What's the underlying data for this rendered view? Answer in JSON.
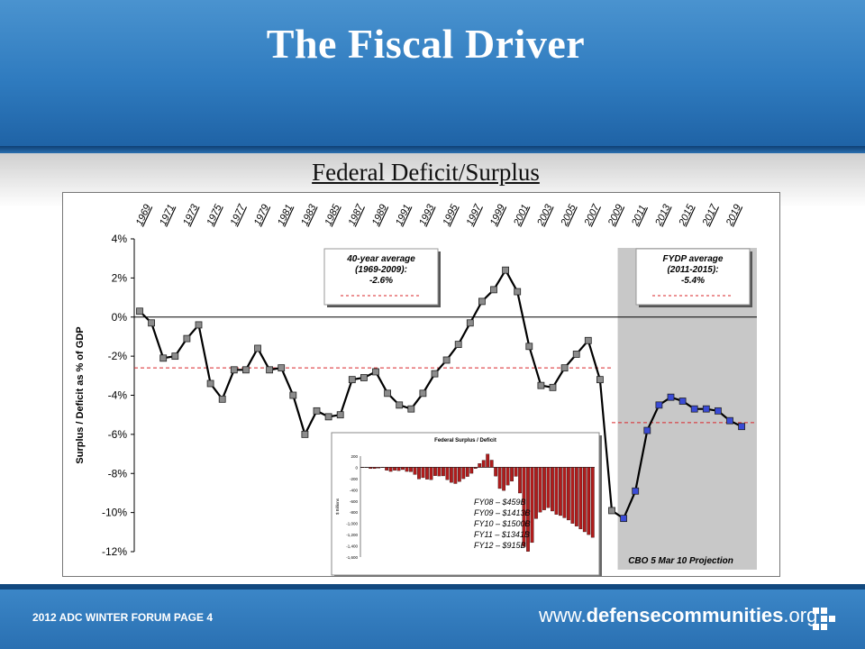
{
  "slide": {
    "title": "The Fiscal Driver",
    "subtitle": "Federal Deficit/Surplus",
    "footer_left": "2012 ADC WINTER FORUM   PAGE 4",
    "footer_right_prefix": "www.",
    "footer_right_bold": "defensecommunities",
    "footer_right_suffix": ".org",
    "band_color": "#2f7bbf"
  },
  "chart_data": [
    {
      "type": "line",
      "ylabel": "Surplus / Deficit as % of GDP",
      "xlabel": "",
      "ylim": [
        -12,
        4
      ],
      "yticks": [
        "4%",
        "2%",
        "0%",
        "-2%",
        "-4%",
        "-6%",
        "-8%",
        "-10%",
        "-12%"
      ],
      "xticks": [
        "1969",
        "1971",
        "1973",
        "1975",
        "1977",
        "1979",
        "1981",
        "1983",
        "1985",
        "1987",
        "1989",
        "1991",
        "1993",
        "1995",
        "1997",
        "1999",
        "2001",
        "2003",
        "2005",
        "2007",
        "2009",
        "2011",
        "2013",
        "2015",
        "2017",
        "2019"
      ],
      "series": [
        {
          "color": "#000000",
          "marker_color": "#8c8c8c",
          "x": [
            1969,
            1970,
            1971,
            1972,
            1973,
            1974,
            1975,
            1976,
            1977,
            1978,
            1979,
            1980,
            1981,
            1982,
            1983,
            1984,
            1985,
            1986,
            1987,
            1988,
            1989,
            1990,
            1991,
            1992,
            1993,
            1994,
            1995,
            1996,
            1997,
            1998,
            1999,
            2000,
            2001,
            2002,
            2003,
            2004,
            2005,
            2006,
            2007,
            2008,
            2009
          ],
          "y": [
            0.3,
            -0.3,
            -2.1,
            -2.0,
            -1.1,
            -0.4,
            -3.4,
            -4.2,
            -2.7,
            -2.7,
            -1.6,
            -2.7,
            -2.6,
            -4.0,
            -6.0,
            -4.8,
            -5.1,
            -5.0,
            -3.2,
            -3.1,
            -2.8,
            -3.9,
            -4.5,
            -4.7,
            -3.9,
            -2.9,
            -2.2,
            -1.4,
            -0.3,
            0.8,
            1.4,
            2.4,
            1.3,
            -1.5,
            -3.5,
            -3.6,
            -2.6,
            -1.9,
            -1.2,
            -3.2,
            -9.9
          ]
        },
        {
          "color": "#000000",
          "marker_color": "#3a4bd6",
          "x": [
            2010,
            2011,
            2012,
            2013,
            2014,
            2015,
            2016,
            2017,
            2018,
            2019,
            2020
          ],
          "y": [
            -10.3,
            -8.9,
            -5.8,
            -4.5,
            -4.1,
            -4.3,
            -4.7,
            -4.7,
            -4.8,
            -5.3,
            -5.6
          ]
        }
      ],
      "reference_lines": [
        {
          "y": -2.6,
          "x_from": 1969,
          "x_to": 2009,
          "color": "#d9262a"
        },
        {
          "y": -5.4,
          "x_from": 2009,
          "x_to": 2020,
          "color": "#d9262a"
        }
      ],
      "projection_region": {
        "x_from": 2009.5,
        "x_to": 2020.5,
        "color": "#c8c8c8",
        "label": "CBO 5 Mar 10 Projection"
      },
      "annotations": [
        {
          "lines": [
            "40-year average",
            "(1969-2009):",
            "-2.6%"
          ]
        },
        {
          "lines": [
            "FYDP average",
            "(2011-2015):",
            "-5.4%"
          ]
        }
      ]
    },
    {
      "type": "bar",
      "title": "Federal Surplus / Deficit",
      "ylabel": "$ Billions",
      "ylim": [
        -1600,
        200
      ],
      "yticks": [
        "200",
        "0",
        "-200",
        "-400",
        "-600",
        "-800",
        "-1,000",
        "-1,200",
        "-1,400",
        "-1,600"
      ],
      "bar_color": "#b01c1c",
      "note_lines": [
        "FY08 – $459B",
        "FY09 – $1413B",
        "FY10 – $1500B",
        "FY11 – $1341B",
        "FY12 – $915B"
      ],
      "values": [
        -5,
        -3,
        -23,
        -23,
        -15,
        -6,
        -53,
        -74,
        -54,
        -59,
        -41,
        -74,
        -79,
        -128,
        -208,
        -185,
        -212,
        -221,
        -150,
        -155,
        -153,
        -221,
        -269,
        -290,
        -255,
        -203,
        -164,
        -107,
        -22,
        69,
        126,
        236,
        128,
        -158,
        -378,
        -413,
        -318,
        -248,
        -161,
        -459,
        -1413,
        -1500,
        -1341,
        -915,
        -800,
        -760,
        -720,
        -780,
        -840,
        -860,
        -900,
        -940,
        -1000,
        -1050,
        -1100,
        -1150,
        -1200,
        -1250
      ]
    }
  ]
}
